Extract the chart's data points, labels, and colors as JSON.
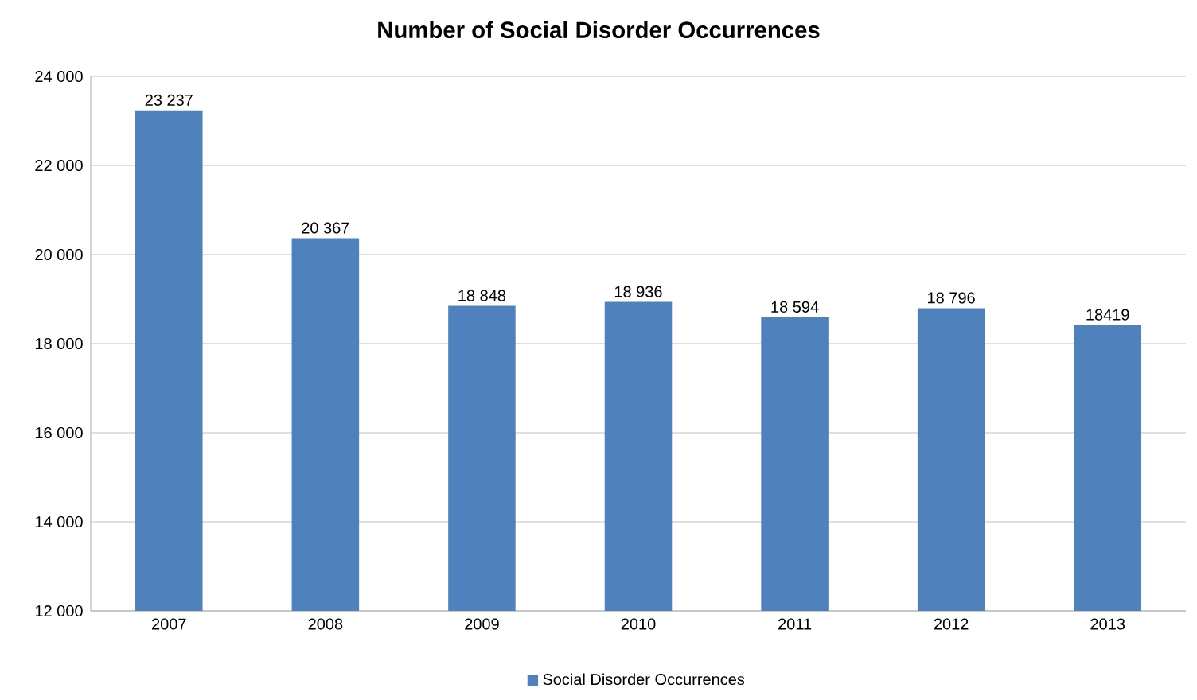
{
  "chart_data": {
    "type": "bar",
    "title": "Number of Social Disorder Occurrences",
    "categories": [
      "2007",
      "2008",
      "2009",
      "2010",
      "2011",
      "2012",
      "2013"
    ],
    "series": [
      {
        "name": "Social Disorder Occurrences",
        "color": "#4f81bd",
        "values": [
          23237,
          20367,
          18848,
          18936,
          18594,
          18796,
          18419
        ],
        "value_labels": [
          "23 237",
          "20 367",
          "18 848",
          "18 936",
          "18 594",
          "18 796",
          "18419"
        ]
      }
    ],
    "ylim": [
      12000,
      24000
    ],
    "yticks": [
      {
        "value": 12000,
        "label": "12 000"
      },
      {
        "value": 14000,
        "label": "14 000"
      },
      {
        "value": 16000,
        "label": "16 000"
      },
      {
        "value": 18000,
        "label": "18 000"
      },
      {
        "value": 20000,
        "label": "20 000"
      },
      {
        "value": 22000,
        "label": "22 000"
      },
      {
        "value": 24000,
        "label": "24 000"
      }
    ],
    "grid": "y",
    "legend": "bottom"
  }
}
